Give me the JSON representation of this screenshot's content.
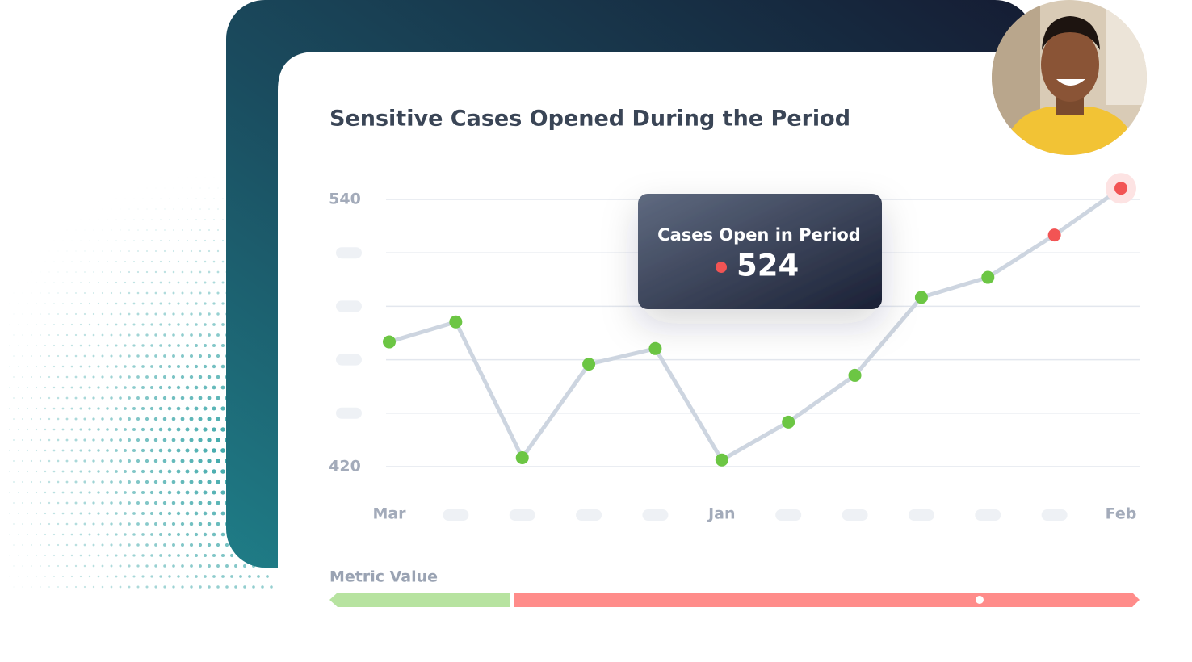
{
  "chart_data": {
    "type": "line",
    "title": "Sensitive Cases Opened During the Period",
    "categories": [
      "Mar",
      null,
      null,
      null,
      null,
      "Jan",
      null,
      null,
      null,
      null,
      null,
      "Feb"
    ],
    "values": [
      476,
      485,
      424,
      466,
      473,
      423,
      440,
      461,
      496,
      505,
      524,
      545
    ],
    "line_color": "#cdd5e0",
    "point_colors": [
      "#6cc644",
      "#6cc644",
      "#6cc644",
      "#6cc644",
      "#6cc644",
      "#6cc644",
      "#6cc644",
      "#6cc644",
      "#6cc644",
      "#6cc644",
      "#f25454",
      "#f25454"
    ],
    "highlight_index": 11,
    "ylim": [
      420,
      540
    ],
    "yticks": [
      420,
      {
        "value": 444,
        "label": null
      },
      {
        "value": 468,
        "label": null
      },
      {
        "value": 492,
        "label": null
      },
      {
        "value": 516,
        "label": null
      },
      540
    ],
    "grid": true,
    "tooltip": {
      "label": "Cases Open in Period",
      "index": 10
    }
  },
  "metric_label": "Metric Value"
}
